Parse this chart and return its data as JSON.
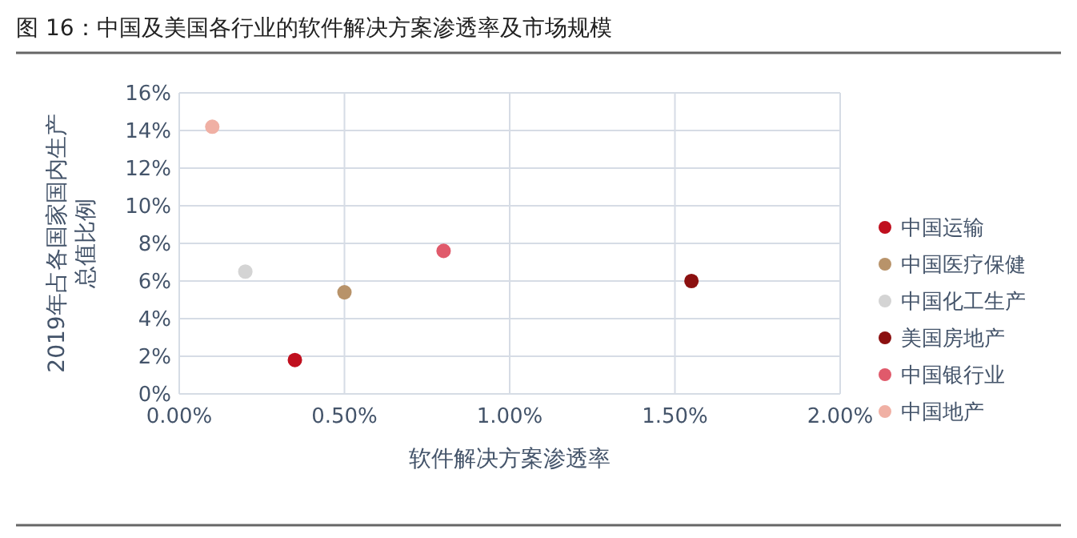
{
  "chart_data": {
    "type": "scatter",
    "title": "图 16：中国及美国各行业的软件解决方案渗透率及市场规模",
    "xlabel": "软件解决方案渗透率",
    "ylabel": "2019年占各国家国内生产总值比例",
    "series": [
      {
        "name": "中国运输",
        "color": "#c00f1e",
        "x": [
          0.35
        ],
        "values": [
          1.8
        ]
      },
      {
        "name": "中国医疗保健",
        "color": "#b8936a",
        "x": [
          0.5
        ],
        "values": [
          5.4
        ]
      },
      {
        "name": "中国化工生产",
        "color": "#d4d4d4",
        "x": [
          0.2
        ],
        "values": [
          6.5
        ]
      },
      {
        "name": "美国房地产",
        "color": "#8b1010",
        "x": [
          1.55
        ],
        "values": [
          6.0
        ]
      },
      {
        "name": "中国银行业",
        "color": "#e05a6b",
        "x": [
          0.8
        ],
        "values": [
          7.6
        ]
      },
      {
        "name": "中国地产",
        "color": "#f0b0a4",
        "x": [
          0.1
        ],
        "values": [
          14.2
        ]
      }
    ],
    "xlim": [
      0,
      2
    ],
    "xticks": [
      {
        "value": 0,
        "label": "0.00%"
      },
      {
        "value": 0.5,
        "label": "0.50%"
      },
      {
        "value": 1,
        "label": "1.00%"
      },
      {
        "value": 1.5,
        "label": "1.50%"
      },
      {
        "value": 2,
        "label": "2.00%"
      }
    ],
    "ylim": [
      0,
      16
    ],
    "yticks": [
      {
        "value": 0,
        "label": "0%"
      },
      {
        "value": 2,
        "label": "2%"
      },
      {
        "value": 4,
        "label": "4%"
      },
      {
        "value": 6,
        "label": "6%"
      },
      {
        "value": 8,
        "label": "8%"
      },
      {
        "value": 10,
        "label": "10%"
      },
      {
        "value": 12,
        "label": "12%"
      },
      {
        "value": 14,
        "label": "14%"
      },
      {
        "value": 16,
        "label": "16%"
      }
    ],
    "grid": true,
    "legend": "right",
    "marker": "circle"
  }
}
